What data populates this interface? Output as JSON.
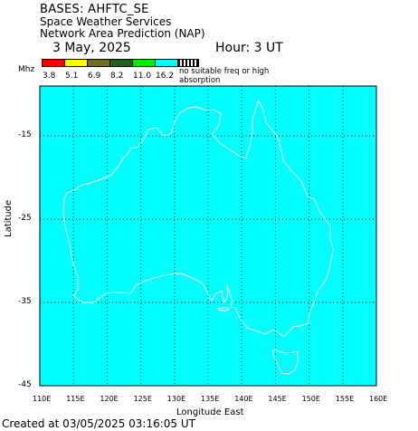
{
  "header": {
    "title": "BASES: AHFTC_SE",
    "subtitle1": "Space Weather Services",
    "subtitle2": "Network Area Prediction (NAP)",
    "date": "3 May, 2025",
    "hour": "Hour:  3 UT"
  },
  "legend": {
    "unit": "Mhz",
    "colors": [
      "#ff0000",
      "#ffff00",
      "#707020",
      "#206020",
      "#00ee00",
      "#00ffff",
      "#000000"
    ],
    "values": [
      "3.8",
      "5.1",
      "6.9",
      "8.2",
      "11.0",
      "16.2"
    ],
    "note": "no suitable freq or high absorption"
  },
  "map": {
    "fill_color": "#00ffff",
    "coast_color": "#ffffff",
    "xlabel": "Longitude East",
    "ylabel": "Latitude",
    "x_ticks": [
      "110E",
      "115E",
      "120E",
      "125E",
      "130E",
      "135E",
      "140E",
      "145E",
      "150E",
      "155E",
      "160E"
    ],
    "y_ticks": [
      "-15",
      "-25",
      "-35",
      "-45"
    ],
    "lon_range": [
      110,
      160
    ],
    "lat_range": [
      -45,
      -9
    ]
  },
  "footer": {
    "created": "Created at 03/05/2025 03:16:05 UT"
  }
}
